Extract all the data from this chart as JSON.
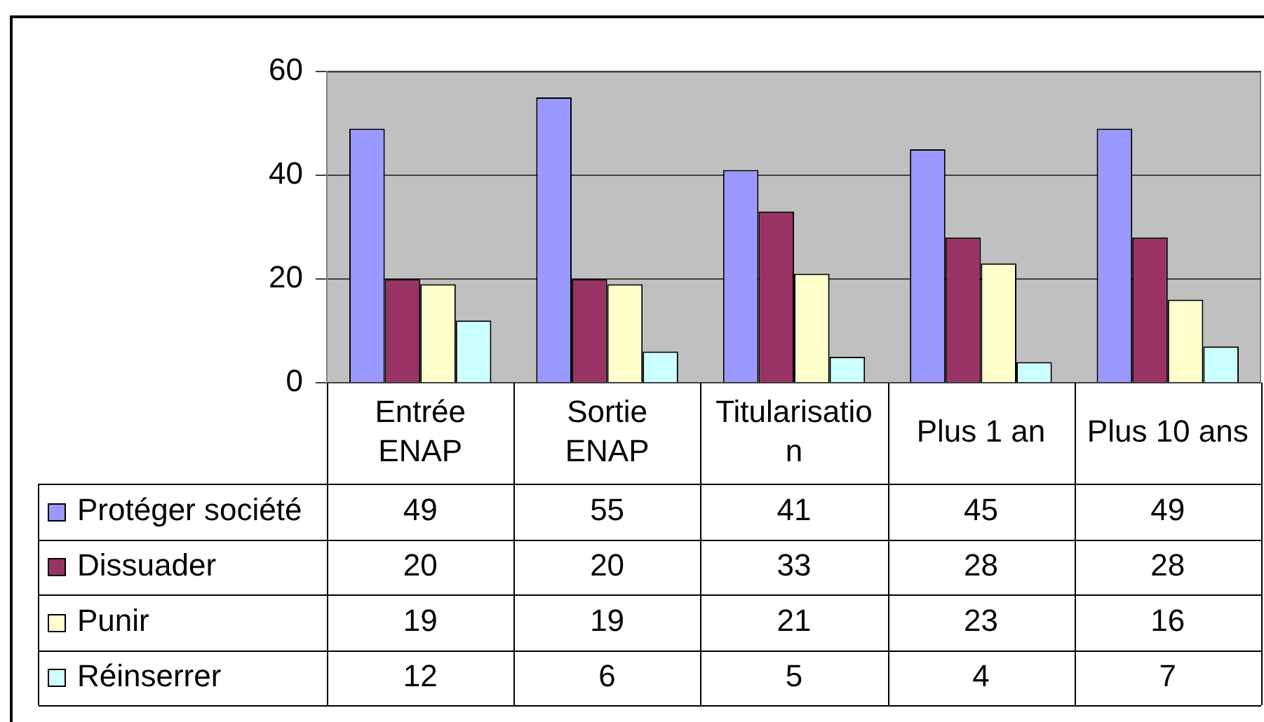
{
  "chart_data": {
    "type": "bar",
    "categories": [
      "Entrée ENAP",
      "Sortie ENAP",
      "Titularisation",
      "Plus 1 an",
      "Plus 10 ans"
    ],
    "series": [
      {
        "name": "Protéger société",
        "color": "#9999ff",
        "values": [
          49,
          55,
          41,
          45,
          49
        ]
      },
      {
        "name": "Dissuader",
        "color": "#993366",
        "values": [
          20,
          20,
          33,
          28,
          28
        ]
      },
      {
        "name": "Punir",
        "color": "#ffffcc",
        "values": [
          19,
          19,
          21,
          23,
          16
        ]
      },
      {
        "name": "Réinserrer",
        "color": "#ccffff",
        "values": [
          12,
          6,
          5,
          4,
          7
        ]
      }
    ],
    "ylim": [
      0,
      60
    ],
    "yticks": [
      0,
      20,
      40,
      60
    ],
    "grid": "y",
    "legend": "bottom left",
    "data_labels": true
  }
}
